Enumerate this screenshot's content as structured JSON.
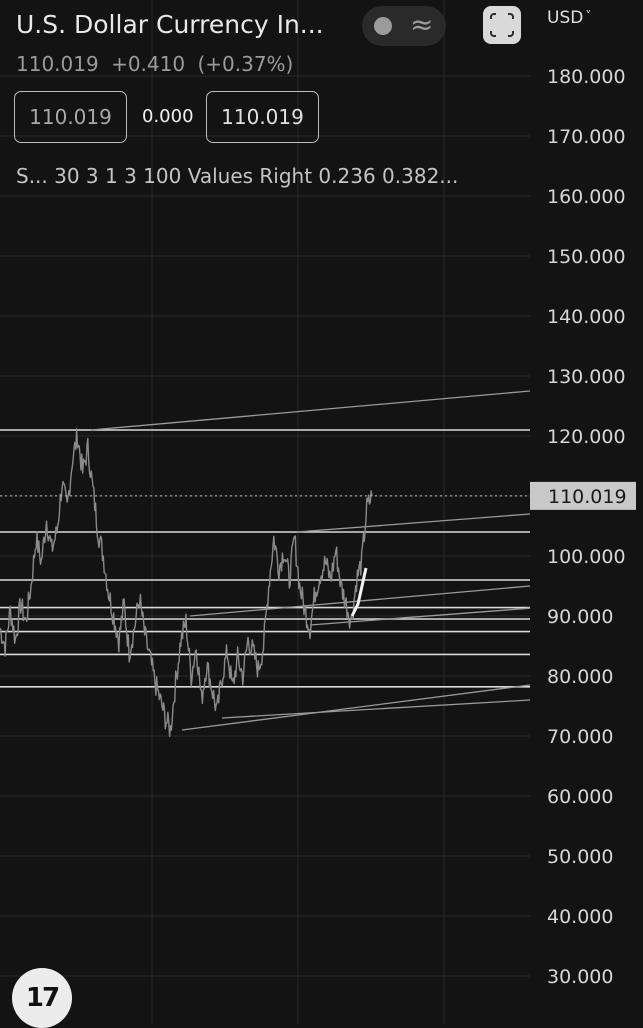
{
  "header": {
    "symbol_title": "U.S. Dollar Currency In...",
    "last_price": "110.019",
    "change": "+0.410",
    "change_pct": "(+0.37%)",
    "currency": "USD",
    "currency_icon": "chevron-down-icon"
  },
  "quote_boxes": {
    "bid": "110.019",
    "spread": "0.000",
    "ask": "110.019"
  },
  "indicator": {
    "text": "S... 30 3 1 3 100 Values Right 0.236 0.382..."
  },
  "toolbar": {
    "toggle_icon": "dot-icon",
    "wave_icon": "approx-wave-icon",
    "wave_glyph": "≈",
    "fullscreen_icon": "fullscreen-icon"
  },
  "logo": {
    "text": "17",
    "icon": "tradingview-logo-icon"
  },
  "colors": {
    "background": "#131313",
    "grid": "#2a2a2a",
    "price_line": "#8a8a8a",
    "horizontal_levels": "#d9d9d9",
    "trend_lines": "#9a9a9a",
    "last_price_label_bg": "#c9c9c9"
  },
  "chart_data": {
    "type": "line",
    "title": "",
    "y_axis": {
      "position": "right",
      "ticks": [
        "180.000",
        "170.000",
        "160.000",
        "150.000",
        "140.000",
        "130.000",
        "120.000",
        "110.000",
        "100.000",
        "90.000",
        "80.000",
        "70.000",
        "60.000",
        "50.000",
        "40.000",
        "30.000"
      ],
      "ylim": [
        25,
        187
      ]
    },
    "last_price_label": "110.019",
    "last_price_value": 110.019,
    "grid": true,
    "series": [
      {
        "values": [
          88,
          85,
          91,
          86,
          92,
          89,
          95,
          103,
          99,
          106,
          101,
          104,
          112,
          108,
          116,
          120,
          114,
          118,
          111,
          104,
          100,
          94,
          90,
          86,
          92,
          84,
          88,
          93,
          87,
          83,
          79,
          76,
          73,
          71,
          79,
          86,
          89,
          80,
          85,
          76,
          82,
          78,
          74,
          80,
          84,
          78,
          83,
          80,
          86,
          84,
          81,
          85,
          95,
          103,
          98,
          101,
          96,
          103,
          95,
          91,
          88,
          94,
          97,
          99,
          96,
          101,
          95,
          92,
          89,
          96,
          99,
          108,
          110.019
        ]
      }
    ],
    "horizontal_levels": [
      121,
      104,
      96,
      91.4,
      89.5,
      87.4,
      83.6,
      78.2
    ],
    "trend_lines": [
      {
        "from": [
          91,
          121
        ],
        "to": [
          530,
          127.5
        ]
      },
      {
        "from": [
          297,
          104
        ],
        "to": [
          530,
          107
        ]
      },
      {
        "from": [
          182,
          71
        ],
        "to": [
          530,
          78.5
        ]
      },
      {
        "from": [
          222,
          73
        ],
        "to": [
          530,
          76
        ]
      },
      {
        "from": [
          190,
          90
        ],
        "to": [
          530,
          95
        ]
      },
      {
        "from": [
          310,
          88.5
        ],
        "to": [
          530,
          91.3
        ]
      }
    ],
    "highlight_segment": [
      [
        352,
        90
      ],
      [
        358,
        92
      ],
      [
        366,
        98
      ]
    ]
  }
}
